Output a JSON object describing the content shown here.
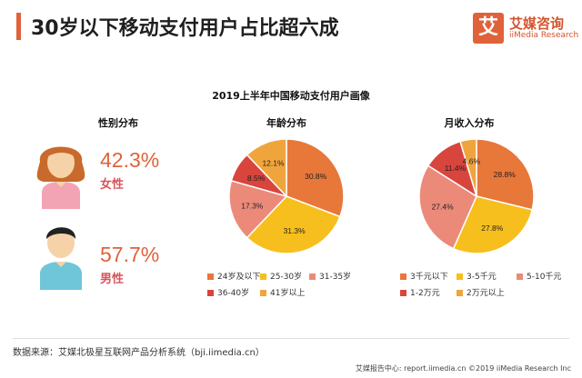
{
  "header": {
    "title": "30岁以下移动支付用户占比超六成"
  },
  "logo": {
    "mark": "艾",
    "name_cn": "艾媒咨询",
    "name_en": "iiMedia Research"
  },
  "chart_title": "2019上半年中国移动支付用户画像",
  "gender": {
    "title": "性别分布",
    "female": {
      "pct": "42.3%",
      "label": "女性",
      "value": 42.3
    },
    "male": {
      "pct": "57.7%",
      "label": "男性",
      "value": 57.7
    }
  },
  "chart_data": [
    {
      "type": "pie",
      "title": "年龄分布",
      "categories": [
        "24岁及以下",
        "25-30岁",
        "31-35岁",
        "36-40岁",
        "41岁以上"
      ],
      "values": [
        30.8,
        31.3,
        17.3,
        8.5,
        12.1
      ],
      "labels": [
        "30.8%",
        "31.3%",
        "17.3%",
        "8.5%",
        "12.1%"
      ],
      "colors": [
        "#e8773a",
        "#f7bf1d",
        "#ec8a7a",
        "#d8453d",
        "#f0a53c"
      ]
    },
    {
      "type": "pie",
      "title": "月收入分布",
      "categories": [
        "3千元以下",
        "3-5千元",
        "5-10千元",
        "1-2万元",
        "2万元以上"
      ],
      "values": [
        28.8,
        27.8,
        27.4,
        11.4,
        4.6
      ],
      "labels": [
        "28.8%",
        "27.8%",
        "27.4%",
        "11.4%",
        "4.6%"
      ],
      "colors": [
        "#e8773a",
        "#f7bf1d",
        "#ec8a7a",
        "#d8453d",
        "#f0a53c"
      ]
    }
  ],
  "source": "数据来源：艾媒北极星互联网产品分析系统（bji.iimedia.cn）",
  "footer": "艾媒报告中心: report.iimedia.cn   ©2019  iiMedia Research  Inc"
}
